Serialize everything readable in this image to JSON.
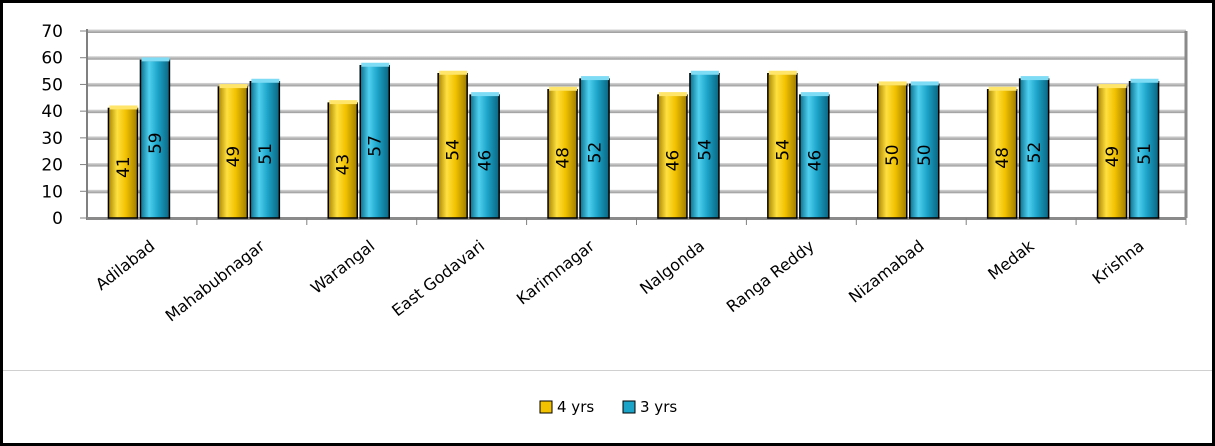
{
  "chart_data": {
    "type": "bar",
    "categories": [
      "Adilabad",
      "Mahabubnagar",
      "Warangal",
      "East Godavari",
      "Karimnagar",
      "Nalgonda",
      "Ranga Reddy",
      "Nizamabad",
      "Medak",
      "Krishna"
    ],
    "series": [
      {
        "name": "4 yrs",
        "values": [
          41,
          49,
          43,
          54,
          48,
          46,
          54,
          50,
          48,
          49
        ],
        "color": "#f2c200"
      },
      {
        "name": "3 yrs",
        "values": [
          59,
          51,
          57,
          46,
          52,
          54,
          46,
          50,
          52,
          51
        ],
        "color": "#1ca3c8"
      }
    ],
    "ylim": [
      0,
      70
    ],
    "yticks": [
      0,
      10,
      20,
      30,
      40,
      50,
      60,
      70
    ],
    "grid": true,
    "legend_position": "bottom",
    "title": "",
    "xlabel": "",
    "ylabel": ""
  }
}
